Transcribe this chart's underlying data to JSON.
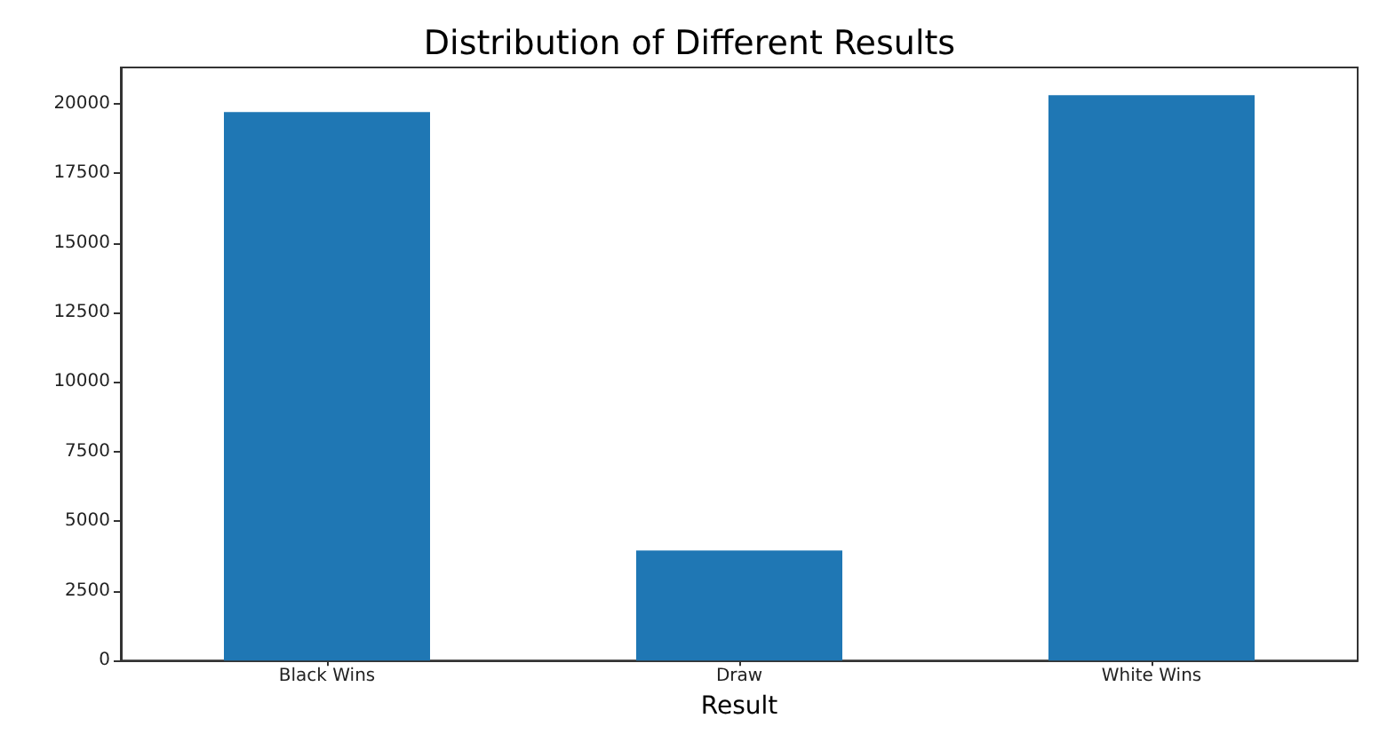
{
  "chart_data": {
    "type": "bar",
    "title": "Distribution of Different Results",
    "xlabel": "Result",
    "categories": [
      "Black Wins",
      "Draw",
      "White Wins"
    ],
    "values": [
      19700,
      3950,
      20300
    ],
    "color": "#1f77b4",
    "ylim": [
      0,
      21300
    ],
    "yticks": [
      0,
      2500,
      5000,
      7500,
      10000,
      12500,
      15000,
      17500,
      20000
    ],
    "grid": false
  }
}
